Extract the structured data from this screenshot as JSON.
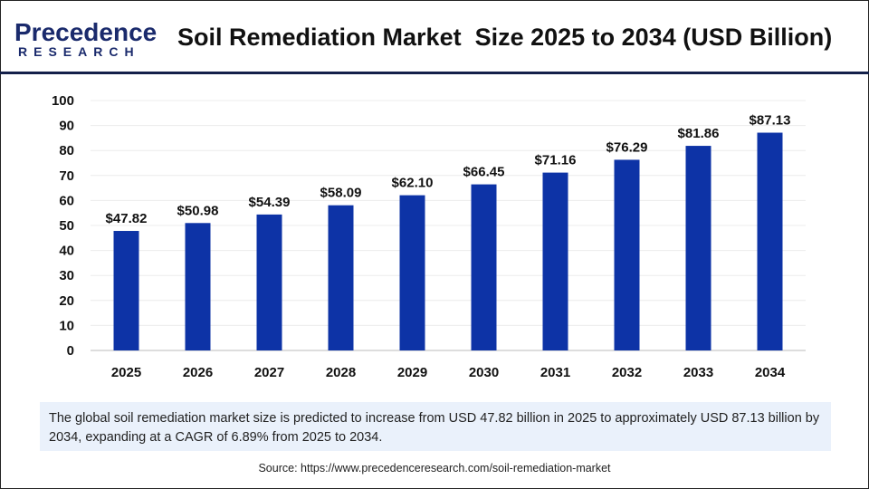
{
  "header": {
    "logo_text_top": "Precedence",
    "logo_text_bottom": "RESEARCH",
    "title": "Soil Remediation Market  Size 2025 to 2034 (USD Billion)"
  },
  "colors": {
    "bar": "#0d33a6",
    "header_line": "#14204a",
    "info_bg": "#eaf1fb"
  },
  "chart_data": {
    "type": "bar",
    "title": "Soil Remediation Market  Size 2025 to 2034 (USD Billion)",
    "categories": [
      "2025",
      "2026",
      "2027",
      "2028",
      "2029",
      "2030",
      "2031",
      "2032",
      "2033",
      "2034"
    ],
    "values": [
      47.82,
      50.98,
      54.39,
      58.09,
      62.1,
      66.45,
      71.16,
      76.29,
      81.86,
      87.13
    ],
    "data_labels": [
      "$47.82",
      "$50.98",
      "$54.39",
      "$58.09",
      "$62.10",
      "$66.45",
      "$71.16",
      "$76.29",
      "$81.86",
      "$87.13"
    ],
    "ylim": [
      0,
      100
    ],
    "yticks": [
      "0",
      "10",
      "20",
      "30",
      "40",
      "50",
      "60",
      "70",
      "80",
      "90",
      "100"
    ],
    "grid": true,
    "xlabel": "",
    "ylabel": ""
  },
  "info": {
    "text": "The global soil remediation market size is predicted to increase from USD 47.82 billion in 2025 to approximately USD 87.13 billion by 2034, expanding at a CAGR of 6.89% from 2025 to 2034."
  },
  "source": {
    "text": "Source: https://www.precedenceresearch.com/soil-remediation-market"
  }
}
